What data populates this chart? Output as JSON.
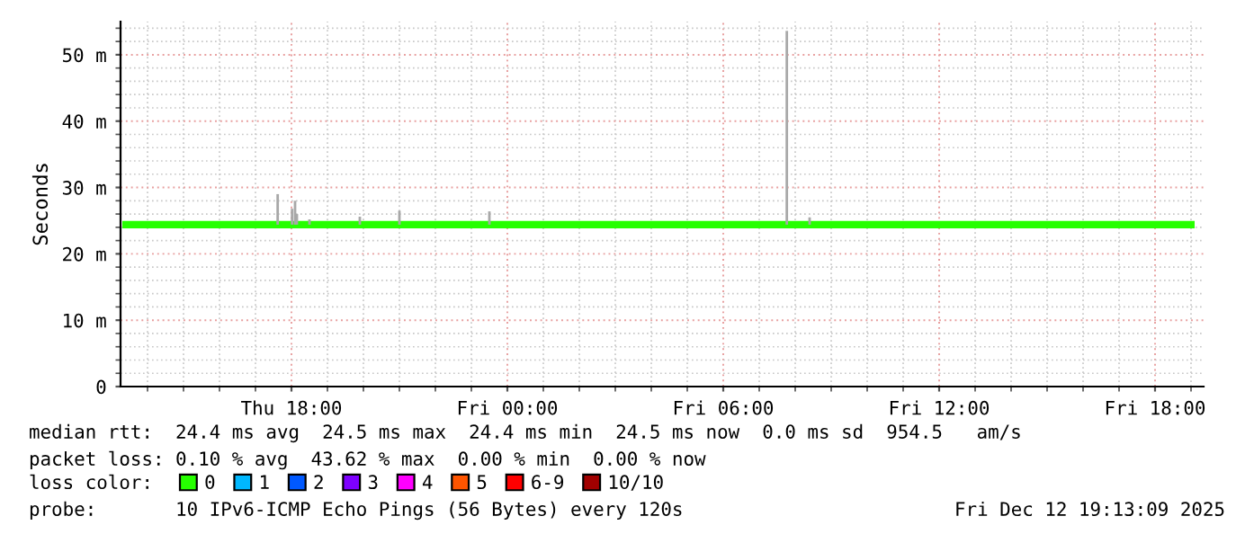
{
  "chart_data": {
    "type": "line",
    "ylabel": "Seconds",
    "xlim": [
      "2025-12-11T13:15",
      "2025-12-12T19:21"
    ],
    "xticks": [
      {
        "value": "2025-12-11T18:00",
        "label": "Thu 18:00"
      },
      {
        "value": "2025-12-12T00:00",
        "label": "Fri 00:00"
      },
      {
        "value": "2025-12-12T06:00",
        "label": "Fri 06:00"
      },
      {
        "value": "2025-12-12T12:00",
        "label": "Fri 12:00"
      },
      {
        "value": "2025-12-12T18:00",
        "label": "Fri 18:00"
      }
    ],
    "ylim": [
      0,
      55
    ],
    "yticks": [
      {
        "value": 0,
        "label": "0"
      },
      {
        "value": 10,
        "label": "10 m"
      },
      {
        "value": 20,
        "label": "20 m"
      },
      {
        "value": 30,
        "label": "30 m"
      },
      {
        "value": 40,
        "label": "40 m"
      },
      {
        "value": 50,
        "label": "50 m"
      }
    ],
    "grid": true,
    "legend": "bottom",
    "legend_title": "loss color:",
    "series": [
      {
        "type": "bar",
        "color": "#a8a8a8",
        "x": [
          "2025-12-11T17:37",
          "2025-12-11T18:01",
          "2025-12-11T18:06",
          "2025-12-11T18:09",
          "2025-12-11T18:30",
          "2025-12-11T19:54",
          "2025-12-11T21:00",
          "2025-12-11T23:30",
          "2025-12-12T07:46",
          "2025-12-12T08:24"
        ],
        "base": [
          24.4,
          24.4,
          24.4,
          24.4,
          24.4,
          24.4,
          24.4,
          24.4,
          24.4,
          24.4
        ],
        "values": [
          4.6,
          2.4,
          3.6,
          1.6,
          0.8,
          1.2,
          2.1,
          2.0,
          29.2,
          1.1
        ]
      },
      {
        "name": "0",
        "color": "#26ff00",
        "x": [
          "2025-12-11T13:18",
          "2025-12-11T16:00",
          "2025-12-11T19:00",
          "2025-12-11T22:00",
          "2025-12-12T01:00",
          "2025-12-12T04:00",
          "2025-12-12T07:00",
          "2025-12-12T10:00",
          "2025-12-12T13:00",
          "2025-12-12T16:00",
          "2025-12-12T19:06"
        ],
        "values": [
          24.4,
          24.4,
          24.4,
          24.4,
          24.4,
          24.4,
          24.4,
          24.4,
          24.4,
          24.4,
          24.4
        ]
      },
      {
        "name": "1",
        "color": "#00b8ff"
      },
      {
        "name": "2",
        "color": "#0059ff"
      },
      {
        "name": "3",
        "color": "#7e00ff"
      },
      {
        "name": "4",
        "color": "#ff00ff"
      },
      {
        "name": "5",
        "color": "#ff5500"
      },
      {
        "name": "6-9",
        "color": "#ff0000"
      },
      {
        "name": "10/10",
        "color": "#a10000"
      }
    ],
    "annotations": [
      "median rtt:  24.4 ms avg  24.5 ms max  24.4 ms min  24.5 ms now  0.0 ms sd  954.5   am/s",
      "packet loss: 0.10 % avg  43.62 % max  0.00 % min  0.00 % now",
      "probe:       10 IPv6-ICMP Echo Pings (56 Bytes) every 120s",
      "Fri Dec 12 19:13:09 2025"
    ]
  }
}
